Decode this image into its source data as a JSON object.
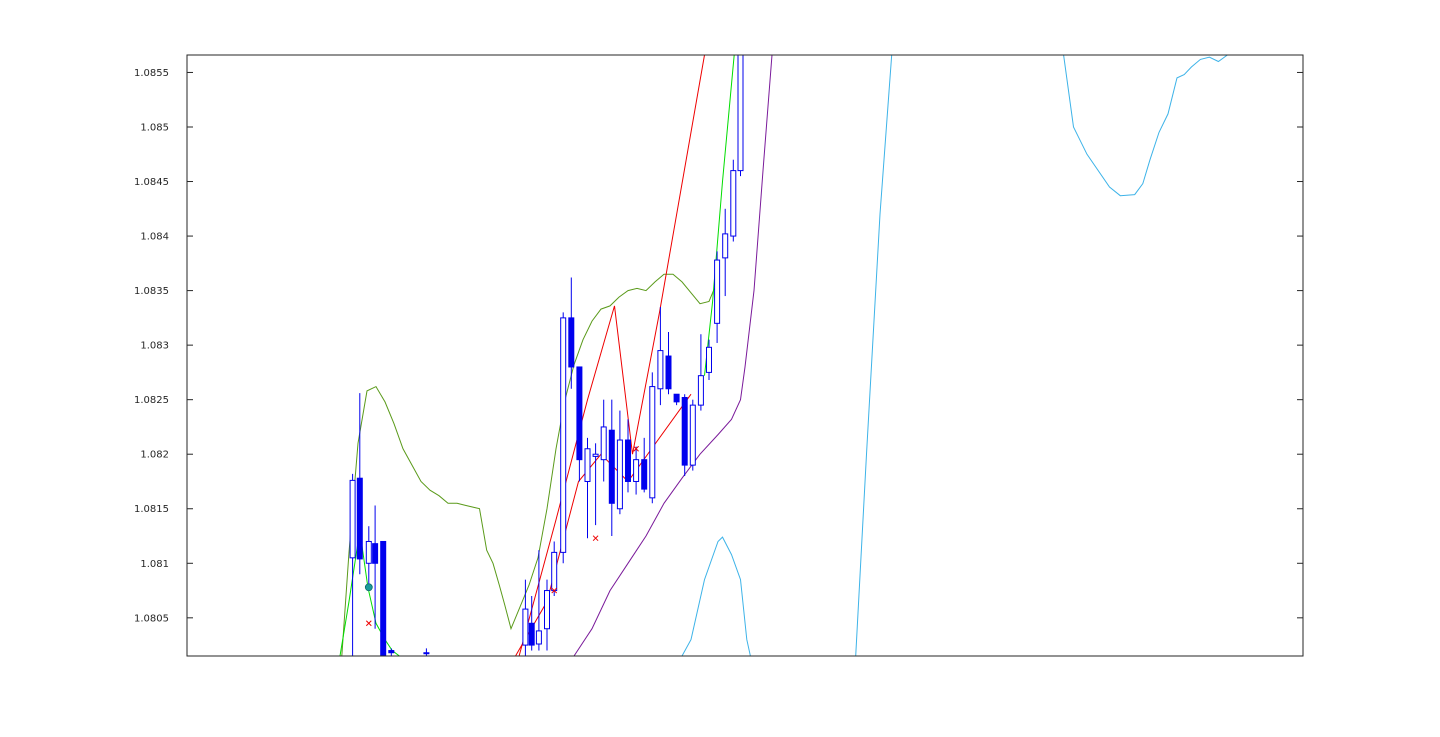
{
  "chart_data": {
    "type": "line",
    "title": "",
    "xlabel": "",
    "ylabel": "",
    "ylim": [
      1.08015,
      1.08566
    ],
    "xlim": [
      0,
      124
    ],
    "grid": false,
    "legend": "none",
    "yticks": [
      "1.0805",
      "1.081",
      "1.0815",
      "1.082",
      "1.0825",
      "1.083",
      "1.0835",
      "1.084",
      "1.0845",
      "1.085",
      "1.0855"
    ],
    "candles": [
      {
        "x": 18.4,
        "o": 1.08105,
        "h": 1.08182,
        "l": 1.08015,
        "c": 1.08176,
        "bear": false
      },
      {
        "x": 19.2,
        "o": 1.08178,
        "h": 1.08256,
        "l": 1.0809,
        "c": 1.08104,
        "bear": true
      },
      {
        "x": 20.2,
        "o": 1.081,
        "h": 1.08134,
        "l": 1.08075,
        "c": 1.0812,
        "bear": false
      },
      {
        "x": 20.9,
        "o": 1.08118,
        "h": 1.08153,
        "l": 1.0804,
        "c": 1.081,
        "bear": true
      },
      {
        "x": 21.8,
        "o": 1.0812,
        "h": 1.0812,
        "l": 1.08015,
        "c": 1.08015,
        "bear": true
      },
      {
        "x": 22.7,
        "o": 1.0802,
        "h": 1.08022,
        "l": 1.08015,
        "c": 1.08018,
        "bear": true
      },
      {
        "x": 26.6,
        "o": 1.08018,
        "h": 1.08022,
        "l": 1.08015,
        "c": 1.08018,
        "bear": true
      },
      {
        "x": 37.6,
        "o": 1.08025,
        "h": 1.08085,
        "l": 1.08015,
        "c": 1.08058,
        "bear": false
      },
      {
        "x": 38.3,
        "o": 1.08045,
        "h": 1.0807,
        "l": 1.0802,
        "c": 1.08025,
        "bear": true
      },
      {
        "x": 39.1,
        "o": 1.08026,
        "h": 1.08112,
        "l": 1.0802,
        "c": 1.08038,
        "bear": false
      },
      {
        "x": 40.0,
        "o": 1.0804,
        "h": 1.08085,
        "l": 1.0802,
        "c": 1.08075,
        "bear": false
      },
      {
        "x": 40.8,
        "o": 1.08075,
        "h": 1.0812,
        "l": 1.0807,
        "c": 1.0811,
        "bear": false
      },
      {
        "x": 41.8,
        "o": 1.0811,
        "h": 1.0833,
        "l": 1.081,
        "c": 1.08325,
        "bear": false
      },
      {
        "x": 42.7,
        "o": 1.08325,
        "h": 1.08362,
        "l": 1.0826,
        "c": 1.0828,
        "bear": true
      },
      {
        "x": 43.6,
        "o": 1.0828,
        "h": 1.0828,
        "l": 1.08175,
        "c": 1.08195,
        "bear": true
      },
      {
        "x": 44.5,
        "o": 1.08175,
        "h": 1.08215,
        "l": 1.08123,
        "c": 1.08205,
        "bear": false
      },
      {
        "x": 45.4,
        "o": 1.082,
        "h": 1.0821,
        "l": 1.08135,
        "c": 1.08198,
        "bear": false
      },
      {
        "x": 46.3,
        "o": 1.08195,
        "h": 1.0825,
        "l": 1.08175,
        "c": 1.08225,
        "bear": false
      },
      {
        "x": 47.2,
        "o": 1.08222,
        "h": 1.0825,
        "l": 1.08125,
        "c": 1.08155,
        "bear": true
      },
      {
        "x": 48.1,
        "o": 1.0815,
        "h": 1.0824,
        "l": 1.08145,
        "c": 1.08213,
        "bear": false
      },
      {
        "x": 49.0,
        "o": 1.08213,
        "h": 1.08232,
        "l": 1.08165,
        "c": 1.08175,
        "bear": true
      },
      {
        "x": 49.9,
        "o": 1.08175,
        "h": 1.08207,
        "l": 1.08163,
        "c": 1.08195,
        "bear": false
      },
      {
        "x": 50.8,
        "o": 1.08195,
        "h": 1.08215,
        "l": 1.08165,
        "c": 1.08168,
        "bear": true
      },
      {
        "x": 51.7,
        "o": 1.0816,
        "h": 1.08275,
        "l": 1.08155,
        "c": 1.08262,
        "bear": false
      },
      {
        "x": 52.6,
        "o": 1.0826,
        "h": 1.08335,
        "l": 1.08245,
        "c": 1.08295,
        "bear": false
      },
      {
        "x": 53.5,
        "o": 1.0829,
        "h": 1.08312,
        "l": 1.08255,
        "c": 1.0826,
        "bear": true
      },
      {
        "x": 54.4,
        "o": 1.08255,
        "h": 1.08255,
        "l": 1.08245,
        "c": 1.08248,
        "bear": true
      },
      {
        "x": 55.3,
        "o": 1.08252,
        "h": 1.08255,
        "l": 1.0818,
        "c": 1.0819,
        "bear": true
      },
      {
        "x": 56.2,
        "o": 1.0819,
        "h": 1.0825,
        "l": 1.08185,
        "c": 1.08245,
        "bear": false
      },
      {
        "x": 57.1,
        "o": 1.08245,
        "h": 1.0831,
        "l": 1.0824,
        "c": 1.08272,
        "bear": false
      },
      {
        "x": 58.0,
        "o": 1.08275,
        "h": 1.08305,
        "l": 1.08268,
        "c": 1.08298,
        "bear": false
      },
      {
        "x": 58.9,
        "o": 1.0832,
        "h": 1.08386,
        "l": 1.08302,
        "c": 1.08378,
        "bear": false
      },
      {
        "x": 59.8,
        "o": 1.0838,
        "h": 1.08425,
        "l": 1.08345,
        "c": 1.08402,
        "bear": false
      },
      {
        "x": 60.7,
        "o": 1.084,
        "h": 1.0847,
        "l": 1.08395,
        "c": 1.0846,
        "bear": false
      },
      {
        "x": 61.5,
        "o": 1.0846,
        "h": 1.08566,
        "l": 1.08455,
        "c": 1.08566,
        "bear": false
      }
    ],
    "series": [
      {
        "color": "#5a9a1a",
        "points": [
          [
            17.2,
            1.08015
          ],
          [
            18.0,
            1.0811
          ],
          [
            19.0,
            1.0821
          ],
          [
            20.0,
            1.08258
          ],
          [
            21.0,
            1.08262
          ],
          [
            22.0,
            1.08248
          ],
          [
            23.0,
            1.08228
          ],
          [
            24.0,
            1.08205
          ],
          [
            25.0,
            1.0819
          ],
          [
            26.0,
            1.08175
          ],
          [
            27.0,
            1.08167
          ],
          [
            28.0,
            1.08162
          ],
          [
            29.0,
            1.08155
          ],
          [
            30.0,
            1.08155
          ],
          [
            31.0,
            1.08153
          ],
          [
            32.5,
            1.0815
          ],
          [
            33.3,
            1.08112
          ],
          [
            34.0,
            1.081
          ],
          [
            34.7,
            1.0808
          ],
          [
            35.3,
            1.08062
          ],
          [
            36.0,
            1.0804
          ],
          [
            37.0,
            1.0806
          ],
          [
            38.0,
            1.0808
          ],
          [
            39.0,
            1.08105
          ],
          [
            40.0,
            1.0815
          ],
          [
            41.0,
            1.08205
          ],
          [
            42.0,
            1.0825
          ],
          [
            43.0,
            1.08282
          ],
          [
            44.0,
            1.08305
          ],
          [
            45.0,
            1.08322
          ],
          [
            46.0,
            1.08333
          ],
          [
            47.0,
            1.08336
          ],
          [
            48.0,
            1.08344
          ],
          [
            49.0,
            1.0835
          ],
          [
            50.0,
            1.08352
          ],
          [
            51.0,
            1.0835
          ],
          [
            52.0,
            1.08358
          ],
          [
            53.0,
            1.08365
          ],
          [
            54.0,
            1.08365
          ],
          [
            55.0,
            1.08358
          ],
          [
            56.0,
            1.08348
          ],
          [
            57.0,
            1.08338
          ],
          [
            58.0,
            1.0834
          ],
          [
            58.6,
            1.08352
          ]
        ]
      },
      {
        "color": "#00dd00",
        "points": [
          [
            17.0,
            1.08015
          ],
          [
            18.0,
            1.08065
          ],
          [
            19.2,
            1.0813
          ],
          [
            20.1,
            1.08078
          ],
          [
            21.0,
            1.08045
          ],
          [
            22.0,
            1.0803
          ],
          [
            22.8,
            1.0802
          ],
          [
            23.6,
            1.08015
          ]
        ]
      },
      {
        "color": "#00dd00",
        "points": [
          [
            57.5,
            1.08272
          ],
          [
            58.4,
            1.0834
          ],
          [
            59.5,
            1.0845
          ],
          [
            60.8,
            1.08566
          ]
        ]
      },
      {
        "color": "#ee0000",
        "points": [
          [
            36.5,
            1.08015
          ],
          [
            40.0,
            1.08065
          ],
          [
            43.5,
            1.08175
          ],
          [
            46.0,
            1.082
          ],
          [
            49.0,
            1.08175
          ],
          [
            56.0,
            1.08255
          ]
        ]
      },
      {
        "color": "#ee0000",
        "points": [
          [
            36.9,
            1.08015
          ],
          [
            41.0,
            1.0814
          ],
          [
            44.5,
            1.0825
          ],
          [
            47.5,
            1.08336
          ],
          [
            49.5,
            1.082
          ],
          [
            52.5,
            1.0833
          ],
          [
            57.5,
            1.08566
          ]
        ]
      },
      {
        "color": "#7a1a9a",
        "points": [
          [
            43.0,
            1.08015
          ],
          [
            45.0,
            1.0804
          ],
          [
            47.0,
            1.08075
          ],
          [
            49.0,
            1.081
          ],
          [
            51.0,
            1.08125
          ],
          [
            53.0,
            1.08155
          ],
          [
            55.0,
            1.08178
          ],
          [
            57.0,
            1.082
          ],
          [
            59.0,
            1.08218
          ],
          [
            60.5,
            1.08232
          ],
          [
            61.5,
            1.0825
          ],
          [
            62.0,
            1.0828
          ],
          [
            63.0,
            1.0835
          ],
          [
            64.0,
            1.0846
          ],
          [
            65.0,
            1.08566
          ]
        ]
      },
      {
        "color": "#3db3e8",
        "points": [
          [
            55.0,
            1.08015
          ],
          [
            56.0,
            1.0803
          ],
          [
            57.5,
            1.08085
          ],
          [
            59.0,
            1.0812
          ],
          [
            59.5,
            1.08124
          ],
          [
            60.5,
            1.08108
          ],
          [
            61.5,
            1.08085
          ],
          [
            62.2,
            1.0803
          ],
          [
            62.6,
            1.08015
          ]
        ]
      },
      {
        "color": "#3db3e8",
        "points": [
          [
            74.3,
            1.08015
          ],
          [
            75.5,
            1.082
          ],
          [
            77.0,
            1.0842
          ],
          [
            78.3,
            1.08566
          ]
        ]
      },
      {
        "color": "#3db3e8",
        "points": [
          [
            97.4,
            1.08566
          ],
          [
            98.5,
            1.085
          ],
          [
            100.0,
            1.08475
          ],
          [
            102.5,
            1.08445
          ],
          [
            103.7,
            1.08437
          ],
          [
            105.3,
            1.08438
          ],
          [
            106.2,
            1.08448
          ],
          [
            107.0,
            1.0847
          ],
          [
            108.0,
            1.08495
          ],
          [
            109.0,
            1.08512
          ],
          [
            110.0,
            1.08545
          ],
          [
            110.8,
            1.08548
          ],
          [
            111.6,
            1.08555
          ],
          [
            112.6,
            1.08562
          ],
          [
            113.6,
            1.08564
          ],
          [
            114.6,
            1.0856
          ],
          [
            115.6,
            1.08566
          ]
        ]
      }
    ],
    "markers": [
      {
        "kind": "dot",
        "x": 20.2,
        "y": 1.08078,
        "color": "#1a9a9a"
      },
      {
        "kind": "cross",
        "x": 20.2,
        "y": 1.08045,
        "color": "#ee0000"
      },
      {
        "kind": "cross",
        "x": 45.4,
        "y": 1.08123,
        "color": "#ee0000"
      },
      {
        "kind": "cross",
        "x": 49.9,
        "y": 1.08205,
        "color": "#ee0000"
      },
      {
        "kind": "cross",
        "x": 40.8,
        "y": 1.08075,
        "color": "#ee0000"
      }
    ]
  }
}
